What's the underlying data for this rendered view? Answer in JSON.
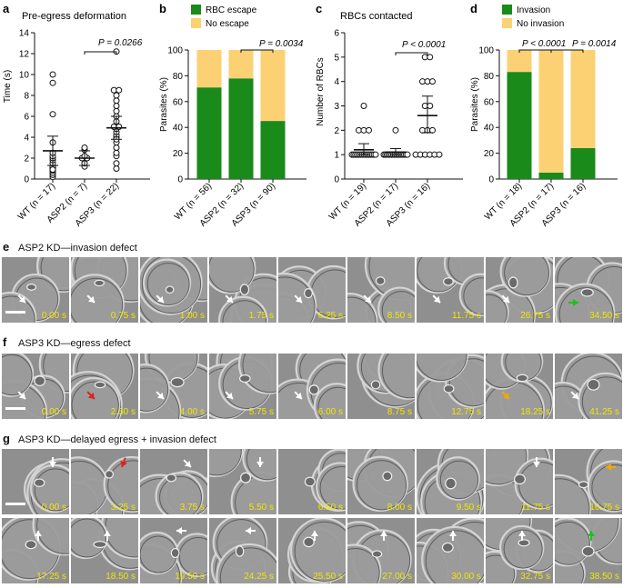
{
  "colors": {
    "green": "#1a8a1a",
    "yellow": "#fcd174",
    "frame_bg": "#8f8f8f",
    "timestamp": "#f2e600"
  },
  "panel_a": {
    "letter": "a",
    "title": "Pre-egress deformation",
    "ylabel": "Time (s)",
    "pvalue": "P = 0.0266",
    "chart_data": {
      "type": "scatter",
      "categories": [
        "WT (n = 17)",
        "ASP2 (n = 7)",
        "ASP3 (n = 22)"
      ],
      "ylim": [
        0,
        14
      ],
      "yticks": [
        "0",
        "2",
        "4",
        "6",
        "8",
        "10",
        "12",
        "14"
      ],
      "points": [
        [
          0.2,
          0.4,
          0.6,
          0.8,
          1.0,
          1.1,
          1.2,
          1.5,
          1.8,
          2.0,
          2.2,
          2.5,
          3.5,
          6.2,
          9.2,
          10.0,
          0.9
        ],
        [
          1.2,
          1.5,
          2.0,
          2.0,
          2.2,
          2.8,
          3.0
        ],
        [
          1.0,
          1.5,
          2.2,
          2.5,
          3.0,
          3.5,
          4.0,
          4.2,
          4.5,
          4.8,
          5.0,
          5.0,
          5.5,
          6.0,
          6.5,
          7.0,
          7.5,
          8.0,
          8.5,
          8.5,
          12.2,
          3.8
        ]
      ],
      "mean": [
        2.7,
        2.0,
        4.9
      ],
      "ci_low": [
        1.3,
        1.3,
        3.8
      ],
      "ci_high": [
        4.1,
        2.7,
        6.0
      ]
    }
  },
  "panel_b": {
    "letter": "b",
    "ylabel": "Parasites (%)",
    "pvalue": "P = 0.0034",
    "legend": [
      "RBC escape",
      "No escape"
    ],
    "chart_data": {
      "type": "bar",
      "stacked": true,
      "categories": [
        "WT (n = 56)",
        "ASP2 (n = 32)",
        "ASP3 (n = 90)"
      ],
      "series": [
        {
          "name": "RBC escape",
          "values": [
            71,
            78,
            45
          ]
        },
        {
          "name": "No escape",
          "values": [
            29,
            22,
            55
          ]
        }
      ],
      "ylim": [
        0,
        100
      ],
      "yticks": [
        "0",
        "20",
        "40",
        "60",
        "80",
        "100"
      ]
    }
  },
  "panel_c": {
    "letter": "c",
    "title": "RBCs contacted",
    "ylabel": "Number of RBCs",
    "pvalue": "P < 0.0001",
    "chart_data": {
      "type": "scatter",
      "categories": [
        "WT (n = 19)",
        "ASP2 (n = 17)",
        "ASP3 (n = 16)"
      ],
      "ylim": [
        0,
        6
      ],
      "yticks": [
        "0",
        "1",
        "2",
        "3",
        "4",
        "5",
        "6"
      ],
      "points": [
        [
          1,
          1,
          1,
          1,
          1,
          1,
          1,
          1,
          1,
          1,
          1,
          1,
          1,
          1,
          1,
          2,
          2,
          2,
          3
        ],
        [
          1,
          1,
          1,
          1,
          1,
          1,
          1,
          1,
          1,
          1,
          1,
          1,
          1,
          1,
          1,
          1,
          2
        ],
        [
          1,
          1,
          1,
          1,
          1,
          1,
          2,
          2,
          2,
          3,
          3,
          4,
          4,
          4,
          5,
          5
        ]
      ],
      "mean": [
        1.2,
        1.1,
        2.6
      ],
      "ci_low": [
        1.0,
        1.0,
        1.9
      ],
      "ci_high": [
        1.45,
        1.25,
        3.4
      ]
    }
  },
  "panel_d": {
    "letter": "d",
    "ylabel": "Parasites (%)",
    "pvalues": [
      "P < 0.0001",
      "P = 0.0014"
    ],
    "legend": [
      "Invasion",
      "No invasion"
    ],
    "chart_data": {
      "type": "bar",
      "stacked": true,
      "categories": [
        "WT (n = 18)",
        "ASP2 (n = 17)",
        "ASP3 (n = 16)"
      ],
      "series": [
        {
          "name": "Invasion",
          "values": [
            83,
            5,
            24
          ]
        },
        {
          "name": "No invasion",
          "values": [
            17,
            95,
            76
          ]
        }
      ],
      "ylim": [
        0,
        100
      ],
      "yticks": [
        "0",
        "20",
        "40",
        "60",
        "80",
        "100"
      ]
    }
  },
  "panel_e": {
    "letter": "e",
    "title": "ASP2 KD—invasion defect",
    "times": [
      "0.00 s",
      "0.75 s",
      "1.00 s",
      "1.75 s",
      "6.25 s",
      "8.50 s",
      "11.75 s",
      "26.75 s",
      "34.50 s"
    ]
  },
  "panel_f": {
    "letter": "f",
    "title": "ASP3 KD—egress defect",
    "times": [
      "0.00 s",
      "2.50 s",
      "4.00 s",
      "5.75 s",
      "6.00 s",
      "8.75 s",
      "12.75 s",
      "18.25 s",
      "41.25 s"
    ]
  },
  "panel_g": {
    "letter": "g",
    "title": "ASP3 KD—delayed egress + invasion defect",
    "times_row1": [
      "0.00 s",
      "3.25 s",
      "3.75 s",
      "5.50 s",
      "6.50 s",
      "8.00 s",
      "9.50 s",
      "11.75 s",
      "16.75 s"
    ],
    "times_row2": [
      "17.25 s",
      "18.50 s",
      "19.50 s",
      "24.25 s",
      "25.50 s",
      "27.00 s",
      "30.00 s",
      "32.75 s",
      "38.50 s"
    ]
  }
}
